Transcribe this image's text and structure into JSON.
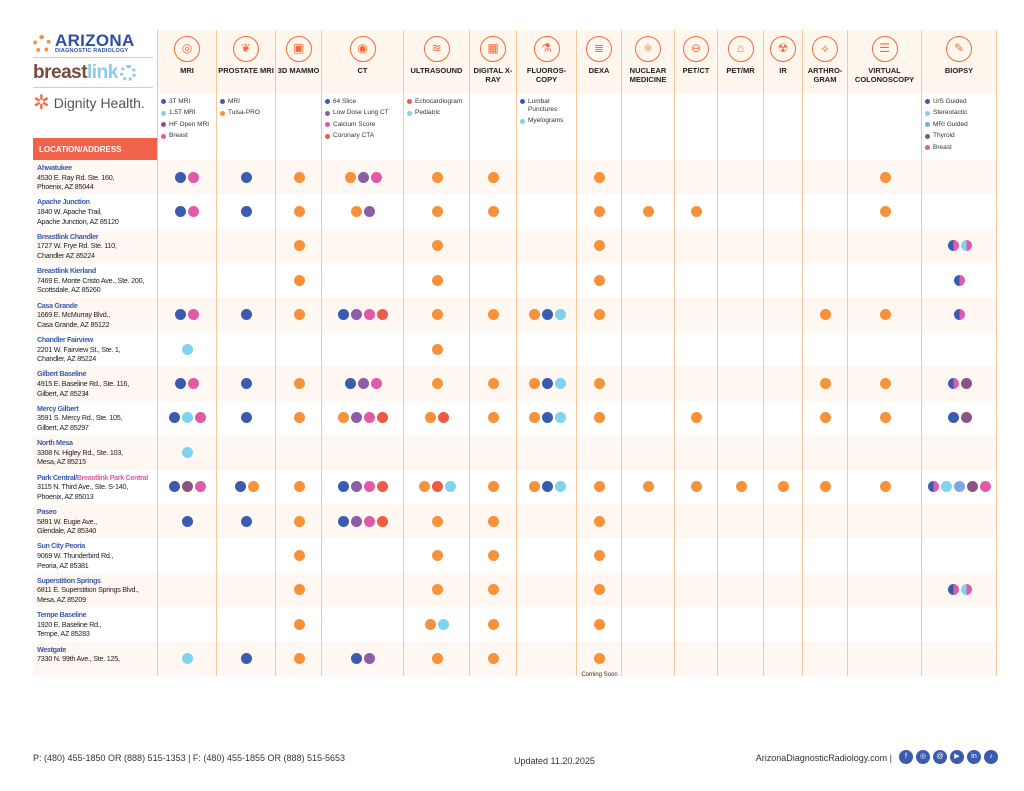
{
  "logos": {
    "adr_line1": "ARIZONA",
    "adr_line2": "DIAGNOSTIC RADIOLOGY",
    "breastlink_a": "breast",
    "breastlink_b": "link",
    "dignity": "Dignity Health."
  },
  "location_header": "LOCATION/ADDRESS",
  "palette": {
    "B": "#3a5bb0",
    "L": "#7fd3ee",
    "Pu": "#8b5ea8",
    "Pl": "#8a5580",
    "P": "#e05aa8",
    "R": "#ef5a44",
    "O": "#f7923a",
    "Pb": "#7fa7e0"
  },
  "columns": [
    {
      "title": "MRI",
      "icon": "mri-icon",
      "glyph": "◎",
      "legend": [
        [
          "B",
          "3T MRI"
        ],
        [
          "L",
          "1.5T MRI"
        ],
        [
          "Pl",
          "HF Open MRI"
        ],
        [
          "P",
          "Breast"
        ]
      ]
    },
    {
      "title": "PROSTATE MRI",
      "icon": "prostate-icon",
      "glyph": "❦",
      "legend": [
        [
          "B",
          "MRI"
        ],
        [
          "O",
          "Tulsa-PRO"
        ]
      ]
    },
    {
      "title": "3D MAMMO",
      "icon": "mammo-icon",
      "glyph": "▣",
      "legend": []
    },
    {
      "title": "CT",
      "icon": "ct-scanner-icon",
      "glyph": "◉",
      "legend": [
        [
          "B",
          "64 Slice"
        ],
        [
          "Pu",
          "Low Dose Lung CT"
        ],
        [
          "P",
          "Calcium Score"
        ],
        [
          "R",
          "Coronary CTA"
        ]
      ]
    },
    {
      "title": "ULTRASOUND",
      "icon": "ultrasound-icon",
      "glyph": "≋",
      "legend": [
        [
          "R",
          "Echocardiogram"
        ],
        [
          "L",
          "Pediatric"
        ]
      ]
    },
    {
      "title": "DIGITAL X-RAY",
      "icon": "xray-icon",
      "glyph": "▦",
      "legend": []
    },
    {
      "title": "FLUOROS-COPY",
      "icon": "fluoroscopy-icon",
      "glyph": "⚗",
      "legend": [
        [
          "B",
          "Lumbar Punctures"
        ],
        [
          "L",
          "Myelograms"
        ]
      ]
    },
    {
      "title": "DEXA",
      "icon": "spine-icon",
      "glyph": "≣",
      "legend": []
    },
    {
      "title": "NUCLEAR MEDICINE",
      "icon": "atom-icon",
      "glyph": "⚛",
      "legend": []
    },
    {
      "title": "PET/CT",
      "icon": "pet-ct-icon",
      "glyph": "⊖",
      "legend": []
    },
    {
      "title": "PET/MR",
      "icon": "pet-mr-icon",
      "glyph": "⌂",
      "legend": []
    },
    {
      "title": "IR",
      "icon": "radiation-icon",
      "glyph": "☢",
      "legend": []
    },
    {
      "title": "ARTHRO-GRAM",
      "icon": "joint-icon",
      "glyph": "⟡",
      "legend": []
    },
    {
      "title": "VIRTUAL COLONOSCOPY",
      "icon": "colon-icon",
      "glyph": "☰",
      "legend": []
    },
    {
      "title": "BIOPSY",
      "icon": "needle-icon",
      "glyph": "✎",
      "legend": [
        [
          "B",
          "U/S Guided"
        ],
        [
          "L",
          "Stereotactic"
        ],
        [
          "Pb",
          "MRI Guided"
        ],
        [
          "Pl",
          "Thyroid"
        ],
        [
          "P",
          "Breast"
        ]
      ]
    }
  ],
  "locations": [
    {
      "name": "Ahwatukee",
      "addr1": "4530 E. Ray Rd. Ste. 160,",
      "addr2": "Phoenix, AZ 85044",
      "cells": [
        [
          "B",
          "P"
        ],
        [
          "B"
        ],
        [
          "O"
        ],
        [
          "O",
          "Pu",
          "P"
        ],
        [
          "O"
        ],
        [
          "O"
        ],
        [],
        [
          "O"
        ],
        [],
        [],
        [],
        [],
        [],
        [
          "O"
        ],
        []
      ]
    },
    {
      "name": "Apache Junction",
      "addr1": "1840 W. Apache Trail,",
      "addr2": "Apache Junction, AZ 85120",
      "cells": [
        [
          "B",
          "P"
        ],
        [
          "B"
        ],
        [
          "O"
        ],
        [
          "O",
          "Pu"
        ],
        [
          "O"
        ],
        [
          "O"
        ],
        [],
        [
          "O"
        ],
        [
          "O"
        ],
        [
          "O"
        ],
        [],
        [],
        [],
        [
          "O"
        ],
        []
      ]
    },
    {
      "name": "Breastlink Chandler",
      "addr1": "1727 W. Frye Rd. Ste. 110,",
      "addr2": "Chandler AZ 85224",
      "cells": [
        [],
        [],
        [
          "O"
        ],
        [],
        [
          "O"
        ],
        [],
        [],
        [
          "O"
        ],
        [],
        [],
        [],
        [],
        [],
        [],
        [
          "B|P",
          "L|P"
        ]
      ]
    },
    {
      "name": "Breastlink Kierland",
      "addr1": "7469 E. Monte Cristo Ave., Ste. 200,",
      "addr2": "Scottsdale, AZ 85260",
      "cells": [
        [],
        [],
        [
          "O"
        ],
        [],
        [
          "O"
        ],
        [],
        [],
        [
          "O"
        ],
        [],
        [],
        [],
        [],
        [],
        [],
        [
          "B|P"
        ]
      ]
    },
    {
      "name": "Casa Grande",
      "addr1": "1669 E. McMurray Blvd.,",
      "addr2": "Casa Grande, AZ 85122",
      "cells": [
        [
          "B",
          "P"
        ],
        [
          "B"
        ],
        [
          "O"
        ],
        [
          "B",
          "Pu",
          "P",
          "R"
        ],
        [
          "O"
        ],
        [
          "O"
        ],
        [
          "O",
          "B",
          "L"
        ],
        [
          "O"
        ],
        [],
        [],
        [],
        [],
        [
          "O"
        ],
        [
          "O"
        ],
        [
          "B|P"
        ]
      ]
    },
    {
      "name": "Chandler Fairview",
      "addr1": "2201 W. Fairview St., Ste. 1,",
      "addr2": "Chandler, AZ 85224",
      "cells": [
        [
          "L"
        ],
        [],
        [],
        [],
        [
          "O"
        ],
        [],
        [],
        [],
        [],
        [],
        [],
        [],
        [],
        [],
        []
      ]
    },
    {
      "name": "Gilbert Baseline",
      "addr1": "4915 E. Baseline Rd., Ste. 116,",
      "addr2": "Gilbert, AZ 85234",
      "cells": [
        [
          "B",
          "P"
        ],
        [
          "B"
        ],
        [
          "O"
        ],
        [
          "B",
          "Pu",
          "P"
        ],
        [
          "O"
        ],
        [
          "O"
        ],
        [
          "O",
          "B",
          "L"
        ],
        [
          "O"
        ],
        [],
        [],
        [],
        [],
        [
          "O"
        ],
        [
          "O"
        ],
        [
          "B|P",
          "Pl"
        ]
      ]
    },
    {
      "name": "Mercy Gilbert",
      "addr1": "3591 S. Mercy Rd., Ste. 105,",
      "addr2": "Gilbert, AZ 85297",
      "cells": [
        [
          "B",
          "L",
          "P"
        ],
        [
          "B"
        ],
        [
          "O"
        ],
        [
          "O",
          "Pu",
          "P",
          "R"
        ],
        [
          "O",
          "R"
        ],
        [
          "O"
        ],
        [
          "O",
          "B",
          "L"
        ],
        [
          "O"
        ],
        [],
        [
          "O"
        ],
        [],
        [],
        [
          "O"
        ],
        [
          "O"
        ],
        [
          "B",
          "Pl"
        ]
      ]
    },
    {
      "name": "North Mesa",
      "addr1": "3308 N. Higley Rd., Ste. 103,",
      "addr2": "Mesa, AZ 85215",
      "cells": [
        [
          "L"
        ],
        [],
        [],
        [],
        [],
        [],
        [],
        [],
        [],
        [],
        [],
        [],
        [],
        [],
        []
      ]
    },
    {
      "name": "Park Central/",
      "name_b": "Breastlink Park Central",
      "addr1": "3115 N. Third Ave., Ste. S-140,",
      "addr2": "Phoenix, AZ 85013",
      "cells": [
        [
          "B",
          "Pl",
          "P"
        ],
        [
          "B",
          "O"
        ],
        [
          "O"
        ],
        [
          "B",
          "Pu",
          "P",
          "R"
        ],
        [
          "O",
          "R",
          "L"
        ],
        [
          "O"
        ],
        [
          "O",
          "B",
          "L"
        ],
        [
          "O"
        ],
        [
          "O"
        ],
        [
          "O"
        ],
        [
          "O"
        ],
        [
          "O"
        ],
        [
          "O"
        ],
        [
          "O"
        ],
        [
          "B|P",
          "L",
          "Pb",
          "Pl",
          "P"
        ]
      ]
    },
    {
      "name": "Paseo",
      "addr1": "5891 W. Eugie Ave.,",
      "addr2": "Glendale, AZ 85340",
      "cells": [
        [
          "B"
        ],
        [
          "B"
        ],
        [
          "O"
        ],
        [
          "B",
          "Pu",
          "P",
          "R"
        ],
        [
          "O"
        ],
        [
          "O"
        ],
        [],
        [
          "O"
        ],
        [],
        [],
        [],
        [],
        [],
        [],
        []
      ]
    },
    {
      "name": "Sun City Peoria",
      "addr1": "9069 W. Thunderbird Rd.,",
      "addr2": "Peoria, AZ 85381",
      "cells": [
        [],
        [],
        [
          "O"
        ],
        [],
        [
          "O"
        ],
        [
          "O"
        ],
        [],
        [
          "O"
        ],
        [],
        [],
        [],
        [],
        [],
        [],
        []
      ]
    },
    {
      "name": "Superstition Springs",
      "addr1": "6811 E. Superstition Springs Blvd.,",
      "addr2": "Mesa, AZ 85209",
      "cells": [
        [],
        [],
        [
          "O"
        ],
        [],
        [
          "O"
        ],
        [
          "O"
        ],
        [],
        [
          "O"
        ],
        [],
        [],
        [],
        [],
        [],
        [],
        [
          "B|P",
          "L|P"
        ]
      ]
    },
    {
      "name": "Tempe Baseline",
      "addr1": "1920 E. Baseline Rd.,",
      "addr2": "Tempe, AZ 85283",
      "cells": [
        [],
        [],
        [
          "O"
        ],
        [],
        [
          "O",
          "L"
        ],
        [
          "O"
        ],
        [],
        [
          "O"
        ],
        [],
        [],
        [],
        [],
        [],
        [],
        []
      ]
    },
    {
      "name": "Westgate",
      "addr1": "7330 N. 99th Ave., Ste. 125,",
      "addr2": "",
      "cells": [
        [
          "L"
        ],
        [
          "B"
        ],
        [
          "O"
        ],
        [
          "B",
          "Pu"
        ],
        [
          "O"
        ],
        [
          "O"
        ],
        [],
        [
          "O"
        ],
        [],
        [],
        [],
        [],
        [],
        [],
        []
      ],
      "note_col": 7,
      "note": "Coming Soon"
    }
  ],
  "footer": {
    "phone": "P: (480) 455-1850 OR (888) 515-1353  |  F: (480) 455-1855 OR (888) 515-5653",
    "updated": "Updated 11.20.2025",
    "website": "ArizonaDiagnosticRadiology.com  |",
    "social": [
      [
        "facebook-icon",
        "f"
      ],
      [
        "instagram-icon",
        "◎"
      ],
      [
        "threads-icon",
        "@"
      ],
      [
        "youtube-icon",
        "▶"
      ],
      [
        "linkedin-icon",
        "in"
      ],
      [
        "tiktok-icon",
        "♪"
      ]
    ]
  }
}
